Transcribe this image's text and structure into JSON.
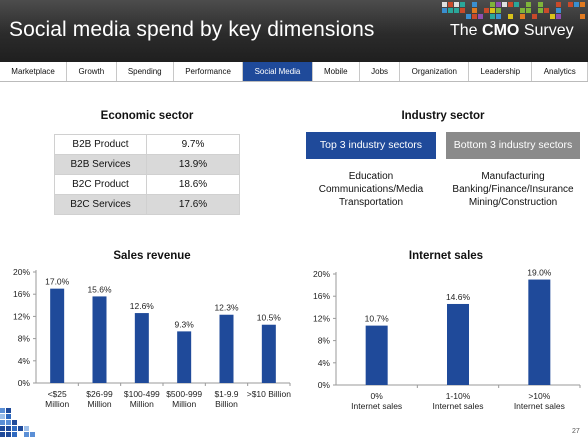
{
  "header": {
    "title": "Social media spend by key dimensions",
    "brand_prefix": "The",
    "brand_bold": "CMO",
    "brand_suffix": "Survey"
  },
  "nav": {
    "tabs": [
      "Marketplace",
      "Growth",
      "Spending",
      "Performance",
      "Social Media",
      "Mobile",
      "Jobs",
      "Organization",
      "Leadership",
      "Analytics"
    ],
    "active": "Social Media"
  },
  "economic_sector": {
    "title": "Economic sector",
    "rows": [
      {
        "label": "B2B Product",
        "value": "9.7%",
        "shaded": false
      },
      {
        "label": "B2B Services",
        "value": "13.9%",
        "shaded": true
      },
      {
        "label": "B2C Product",
        "value": "18.6%",
        "shaded": false
      },
      {
        "label": "B2C Services",
        "value": "17.6%",
        "shaded": true
      }
    ]
  },
  "industry_sector": {
    "title": "Industry sector",
    "top_button": "Top 3 industry sectors",
    "bottom_button": "Bottom 3 industry sectors",
    "top_items": [
      "Education",
      "Communications/Media",
      "Transportation"
    ],
    "bottom_items": [
      "Manufacturing",
      "Banking/Finance/Insurance",
      "Mining/Construction"
    ]
  },
  "chart_data": [
    {
      "type": "bar",
      "title": "Sales revenue",
      "categories": [
        [
          "<$25",
          "Million"
        ],
        [
          "$26-99",
          "Million"
        ],
        [
          "$100-499",
          "Million"
        ],
        [
          "$500-999",
          "Million"
        ],
        [
          "$1-9.9",
          "Billion"
        ],
        [
          ">$10 Billion"
        ]
      ],
      "values": [
        17.0,
        15.6,
        12.6,
        9.3,
        12.3,
        10.5
      ],
      "labels": [
        "17.0%",
        "15.6%",
        "12.6%",
        "9.3%",
        "12.3%",
        "10.5%"
      ],
      "yticks": [
        "0%",
        "4%",
        "8%",
        "12%",
        "16%",
        "20%"
      ],
      "ylim": [
        0,
        20
      ],
      "color": "#1f4a9a"
    },
    {
      "type": "bar",
      "title": "Internet sales",
      "categories": [
        [
          "0%",
          "Internet sales"
        ],
        [
          "1-10%",
          "Internet sales"
        ],
        [
          ">10%",
          "Internet sales"
        ]
      ],
      "values": [
        10.7,
        14.6,
        19.0
      ],
      "labels": [
        "10.7%",
        "14.6%",
        "19.0%"
      ],
      "yticks": [
        "0%",
        "4%",
        "8%",
        "12%",
        "16%",
        "20%"
      ],
      "ylim": [
        0,
        20
      ],
      "color": "#1f4a9a"
    }
  ],
  "slide_number": "27",
  "colors": {
    "accent": "#1f4a9a",
    "header_bg": "#2b2b2b",
    "muted_button": "#8a8a8a"
  }
}
